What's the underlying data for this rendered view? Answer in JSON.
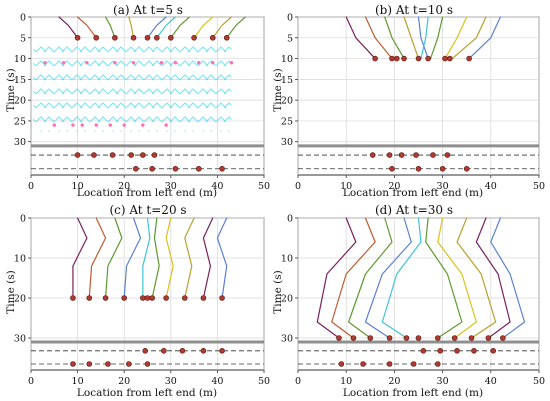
{
  "figure": {
    "background": "#ffffff"
  },
  "colors": {
    "axis": "#333333",
    "grid": "#d6d6d6",
    "ground": "#8f8f8f",
    "dashed_lane": "#333333",
    "point_fill": "#b03a2e",
    "point_stroke": "#5b1a15",
    "trajectory_palette": [
      "#7a1f5c",
      "#c15a2c",
      "#5c9a2e",
      "#b7a12a",
      "#5b7fd6",
      "#3ec4d4",
      "#d7c21c"
    ],
    "accent_pattern": "#39d7f0",
    "accent_points": "#ff6fb7"
  },
  "chart_data": [
    {
      "type": "line",
      "title": "(a) At t=5 s",
      "xlabel": "Location from left end (m)",
      "ylabel": "Time (s)",
      "xlim": [
        0,
        50
      ],
      "ylim": [
        0,
        38
      ],
      "xticks": [
        0,
        10,
        20,
        30,
        40,
        50
      ],
      "yticks": [
        0,
        5,
        10,
        15,
        20,
        25,
        30
      ],
      "grid": true,
      "separator_y": 31,
      "lane_y": [
        33.2,
        36.5
      ],
      "series": [
        {
          "x": [
            6,
            8,
            10
          ],
          "y": [
            0,
            2,
            5
          ],
          "color": "#7a1f5c"
        },
        {
          "x": [
            10,
            12,
            14
          ],
          "y": [
            0,
            2,
            5
          ],
          "color": "#c15a2c"
        },
        {
          "x": [
            16,
            17,
            18
          ],
          "y": [
            0,
            2,
            5
          ],
          "color": "#5c9a2e"
        },
        {
          "x": [
            21,
            21.5,
            22
          ],
          "y": [
            0,
            2,
            5
          ],
          "color": "#b7a12a"
        },
        {
          "x": [
            29,
            27,
            25
          ],
          "y": [
            0,
            2,
            5
          ],
          "color": "#5b7fd6"
        },
        {
          "x": [
            31,
            29,
            27
          ],
          "y": [
            0,
            2,
            5
          ],
          "color": "#3ec4d4"
        },
        {
          "x": [
            34,
            32,
            30
          ],
          "y": [
            0,
            2,
            5
          ],
          "color": "#5c9a2e"
        },
        {
          "x": [
            39,
            37,
            35
          ],
          "y": [
            0,
            2,
            5
          ],
          "color": "#d7c21c"
        },
        {
          "x": [
            43,
            41,
            39
          ],
          "y": [
            0,
            2,
            5
          ],
          "color": "#b7a12a"
        },
        {
          "x": [
            46,
            44,
            42
          ],
          "y": [
            0,
            2,
            5
          ],
          "color": "#5c9a2e"
        }
      ],
      "active_points": [
        {
          "x": 10,
          "y": 5
        },
        {
          "x": 14,
          "y": 5
        },
        {
          "x": 18,
          "y": 5
        },
        {
          "x": 22,
          "y": 5
        },
        {
          "x": 25,
          "y": 5
        },
        {
          "x": 27,
          "y": 5
        },
        {
          "x": 30,
          "y": 5
        },
        {
          "x": 35,
          "y": 5
        },
        {
          "x": 39,
          "y": 5
        },
        {
          "x": 42,
          "y": 5
        }
      ],
      "lane_points": [
        {
          "x": 10,
          "y": 33.2
        },
        {
          "x": 13.5,
          "y": 33.2
        },
        {
          "x": 17.5,
          "y": 33.2
        },
        {
          "x": 21.5,
          "y": 33.2
        },
        {
          "x": 24,
          "y": 33.2
        },
        {
          "x": 26.5,
          "y": 33.2
        },
        {
          "x": 22.5,
          "y": 36.5
        },
        {
          "x": 26,
          "y": 36.5
        },
        {
          "x": 31,
          "y": 36.5
        },
        {
          "x": 36,
          "y": 36.5
        },
        {
          "x": 41,
          "y": 36.5
        }
      ],
      "accent_points": [
        {
          "x": 3,
          "y": 11
        },
        {
          "x": 7,
          "y": 11
        },
        {
          "x": 12,
          "y": 11
        },
        {
          "x": 18,
          "y": 11
        },
        {
          "x": 22,
          "y": 11
        },
        {
          "x": 28,
          "y": 11
        },
        {
          "x": 31,
          "y": 11
        },
        {
          "x": 36,
          "y": 11
        },
        {
          "x": 39,
          "y": 11
        },
        {
          "x": 43,
          "y": 11
        },
        {
          "x": 5,
          "y": 26
        },
        {
          "x": 9,
          "y": 26
        },
        {
          "x": 11,
          "y": 26
        },
        {
          "x": 14,
          "y": 26
        },
        {
          "x": 17,
          "y": 26
        },
        {
          "x": 20,
          "y": 26
        },
        {
          "x": 24,
          "y": 26
        },
        {
          "x": 29,
          "y": 26
        }
      ]
    },
    {
      "type": "line",
      "title": "(b) At t=10 s",
      "xlabel": "Location from left end (m)",
      "ylabel": "Time (s)",
      "xlim": [
        0,
        50
      ],
      "ylim": [
        0,
        38
      ],
      "xticks": [
        0,
        10,
        20,
        30,
        40,
        50
      ],
      "yticks": [
        0,
        5,
        10,
        15,
        20,
        25,
        30
      ],
      "grid": true,
      "separator_y": 31,
      "lane_y": [
        33.2,
        36.5
      ],
      "series": [
        {
          "x": [
            10,
            12,
            16
          ],
          "y": [
            0,
            5,
            10
          ],
          "color": "#7a1f5c"
        },
        {
          "x": [
            14,
            16,
            19.5
          ],
          "y": [
            0,
            5,
            10
          ],
          "color": "#c15a2c"
        },
        {
          "x": [
            18,
            19.5,
            22
          ],
          "y": [
            0,
            5,
            10
          ],
          "color": "#5c9a2e"
        },
        {
          "x": [
            22,
            23.5,
            25
          ],
          "y": [
            0,
            5,
            10
          ],
          "color": "#b7a12a"
        },
        {
          "x": [
            25,
            25.5,
            27
          ],
          "y": [
            0,
            5,
            10
          ],
          "color": "#5b7fd6"
        },
        {
          "x": [
            27,
            26.5,
            25.5
          ],
          "y": [
            0,
            5,
            10
          ],
          "color": "#3ec4d4"
        },
        {
          "x": [
            30,
            29,
            27.5
          ],
          "y": [
            0,
            5,
            10
          ],
          "color": "#5c9a2e"
        },
        {
          "x": [
            35,
            33,
            30.5
          ],
          "y": [
            0,
            5,
            10
          ],
          "color": "#d7c21c"
        },
        {
          "x": [
            39,
            37,
            32
          ],
          "y": [
            0,
            5,
            10
          ],
          "color": "#b7a12a"
        },
        {
          "x": [
            42,
            40,
            35.5
          ],
          "y": [
            0,
            5,
            10
          ],
          "color": "#5b7fd6"
        }
      ],
      "active_points": [
        {
          "x": 16,
          "y": 10
        },
        {
          "x": 19.5,
          "y": 10
        },
        {
          "x": 20.5,
          "y": 10
        },
        {
          "x": 22,
          "y": 10
        },
        {
          "x": 25,
          "y": 10
        },
        {
          "x": 27,
          "y": 10
        },
        {
          "x": 30.5,
          "y": 10
        },
        {
          "x": 31.5,
          "y": 10
        },
        {
          "x": 35.5,
          "y": 10
        }
      ],
      "lane_points": [
        {
          "x": 15.5,
          "y": 33.2
        },
        {
          "x": 19,
          "y": 33.2
        },
        {
          "x": 21.5,
          "y": 33.2
        },
        {
          "x": 24.5,
          "y": 33.2
        },
        {
          "x": 28,
          "y": 33.2
        },
        {
          "x": 31,
          "y": 33.2
        },
        {
          "x": 19.5,
          "y": 36.5
        },
        {
          "x": 25,
          "y": 36.5
        },
        {
          "x": 30,
          "y": 36.5
        },
        {
          "x": 35,
          "y": 36.5
        }
      ],
      "accent_points": []
    },
    {
      "type": "line",
      "title": "(c) At t=20 s",
      "xlabel": "Location from left end (m)",
      "ylabel": "Time (s)",
      "xlim": [
        0,
        50
      ],
      "ylim": [
        0,
        38
      ],
      "xticks": [
        0,
        10,
        20,
        30,
        40,
        50
      ],
      "yticks": [
        0,
        10,
        20,
        30
      ],
      "grid": true,
      "separator_y": 31,
      "lane_y": [
        33.2,
        36.5
      ],
      "series": [
        {
          "x": [
            10,
            12,
            9,
            9
          ],
          "y": [
            0,
            5,
            12,
            20
          ],
          "color": "#7a1f5c"
        },
        {
          "x": [
            14,
            16,
            13,
            12.5
          ],
          "y": [
            0,
            5,
            12,
            20
          ],
          "color": "#c15a2c"
        },
        {
          "x": [
            18,
            19.5,
            16.5,
            16
          ],
          "y": [
            0,
            5,
            12,
            20
          ],
          "color": "#5c9a2e"
        },
        {
          "x": [
            22,
            23.5,
            20.5,
            20
          ],
          "y": [
            0,
            5,
            12,
            20
          ],
          "color": "#5b7fd6"
        },
        {
          "x": [
            25,
            25.5,
            24,
            24
          ],
          "y": [
            0,
            5,
            12,
            20
          ],
          "color": "#3ec4d4"
        },
        {
          "x": [
            27,
            26.5,
            27.5,
            26
          ],
          "y": [
            0,
            5,
            12,
            20
          ],
          "color": "#5c9a2e"
        },
        {
          "x": [
            30,
            29,
            30.5,
            29
          ],
          "y": [
            0,
            5,
            12,
            20
          ],
          "color": "#d7c21c"
        },
        {
          "x": [
            35,
            33,
            34.5,
            33
          ],
          "y": [
            0,
            5,
            12,
            20
          ],
          "color": "#b7a12a"
        },
        {
          "x": [
            39,
            37,
            38.5,
            37
          ],
          "y": [
            0,
            5,
            12,
            20
          ],
          "color": "#7a1f5c"
        },
        {
          "x": [
            42,
            40,
            42,
            41
          ],
          "y": [
            0,
            5,
            12,
            20
          ],
          "color": "#5b7fd6"
        }
      ],
      "active_points": [
        {
          "x": 9,
          "y": 20
        },
        {
          "x": 12.5,
          "y": 20
        },
        {
          "x": 16,
          "y": 20
        },
        {
          "x": 20,
          "y": 20
        },
        {
          "x": 24,
          "y": 20
        },
        {
          "x": 25,
          "y": 20
        },
        {
          "x": 26,
          "y": 20
        },
        {
          "x": 29,
          "y": 20
        },
        {
          "x": 33,
          "y": 20
        },
        {
          "x": 37,
          "y": 20
        },
        {
          "x": 41,
          "y": 20
        }
      ],
      "lane_points": [
        {
          "x": 24.5,
          "y": 33.2
        },
        {
          "x": 28.5,
          "y": 33.2
        },
        {
          "x": 32.5,
          "y": 33.2
        },
        {
          "x": 37,
          "y": 33.2
        },
        {
          "x": 41,
          "y": 33.2
        },
        {
          "x": 9,
          "y": 36.5
        },
        {
          "x": 12.5,
          "y": 36.5
        },
        {
          "x": 16.5,
          "y": 36.5
        },
        {
          "x": 21,
          "y": 36.5
        },
        {
          "x": 25,
          "y": 36.5
        }
      ],
      "accent_points": []
    },
    {
      "type": "line",
      "title": "(d) At t=30 s",
      "xlabel": "Location from left end (m)",
      "ylabel": "Time (s)",
      "xlim": [
        0,
        50
      ],
      "ylim": [
        0,
        38
      ],
      "xticks": [
        0,
        10,
        20,
        30,
        40,
        50
      ],
      "yticks": [
        0,
        10,
        20,
        30
      ],
      "grid": true,
      "separator_y": 31,
      "lane_y": [
        33.2,
        36.5
      ],
      "series": [
        {
          "x": [
            10,
            12,
            6,
            4,
            8.5
          ],
          "y": [
            0,
            6,
            14,
            26,
            30
          ],
          "color": "#7a1f5c"
        },
        {
          "x": [
            14,
            16,
            10,
            7,
            11.5
          ],
          "y": [
            0,
            6,
            14,
            26,
            30
          ],
          "color": "#c15a2c"
        },
        {
          "x": [
            18,
            19.5,
            14,
            10.5,
            15
          ],
          "y": [
            0,
            6,
            14,
            26,
            30
          ],
          "color": "#5c9a2e"
        },
        {
          "x": [
            22,
            23.5,
            17.5,
            14,
            19
          ],
          "y": [
            0,
            6,
            14,
            26,
            30
          ],
          "color": "#5b7fd6"
        },
        {
          "x": [
            25,
            25.5,
            20.5,
            17.5,
            22.5
          ],
          "y": [
            0,
            6,
            14,
            26,
            30
          ],
          "color": "#3ec4d4"
        },
        {
          "x": [
            27,
            26.5,
            31,
            34,
            29
          ],
          "y": [
            0,
            6,
            14,
            26,
            30
          ],
          "color": "#5c9a2e"
        },
        {
          "x": [
            30,
            29,
            34,
            37,
            32.5
          ],
          "y": [
            0,
            6,
            14,
            26,
            30
          ],
          "color": "#d7c21c"
        },
        {
          "x": [
            35,
            33,
            38,
            41,
            36
          ],
          "y": [
            0,
            6,
            14,
            26,
            30
          ],
          "color": "#b7a12a"
        },
        {
          "x": [
            39,
            37,
            41.5,
            44,
            39.5
          ],
          "y": [
            0,
            6,
            14,
            26,
            30
          ],
          "color": "#7a1f5c"
        },
        {
          "x": [
            42,
            40,
            44,
            47,
            42.5
          ],
          "y": [
            0,
            6,
            14,
            26,
            30
          ],
          "color": "#5b7fd6"
        }
      ],
      "active_points": [
        {
          "x": 8.5,
          "y": 30
        },
        {
          "x": 11.5,
          "y": 30
        },
        {
          "x": 15,
          "y": 30
        },
        {
          "x": 19,
          "y": 30
        },
        {
          "x": 22.5,
          "y": 30
        },
        {
          "x": 25,
          "y": 30
        },
        {
          "x": 29,
          "y": 30
        },
        {
          "x": 32.5,
          "y": 30
        },
        {
          "x": 36,
          "y": 30
        },
        {
          "x": 39.5,
          "y": 30
        },
        {
          "x": 42.5,
          "y": 30
        }
      ],
      "lane_points": [
        {
          "x": 26,
          "y": 33.2
        },
        {
          "x": 29.5,
          "y": 33.2
        },
        {
          "x": 33,
          "y": 33.2
        },
        {
          "x": 36.5,
          "y": 33.2
        },
        {
          "x": 40.5,
          "y": 33.2
        },
        {
          "x": 9,
          "y": 36.5
        },
        {
          "x": 13.5,
          "y": 36.5
        },
        {
          "x": 19,
          "y": 36.5
        },
        {
          "x": 24,
          "y": 36.5
        },
        {
          "x": 29,
          "y": 36.5
        }
      ],
      "accent_points": []
    }
  ]
}
